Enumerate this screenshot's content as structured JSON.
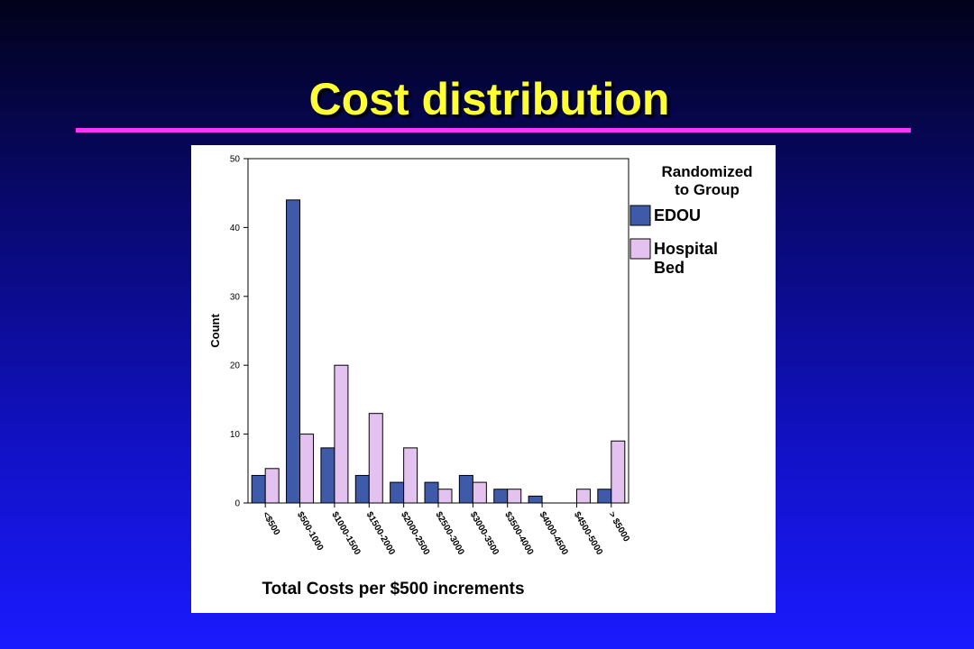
{
  "slide": {
    "title": "Cost distribution"
  },
  "colors": {
    "title": "#ffff33",
    "rule": "#ff33ff",
    "edou": "#3f5aa8",
    "hospital": "#e3c2ef"
  },
  "chart_data": {
    "type": "bar",
    "title": "",
    "xlabel": "Total Costs per $500 increments",
    "ylabel": "Count",
    "ylim": [
      0,
      50
    ],
    "yticks": [
      0,
      10,
      20,
      30,
      40,
      50
    ],
    "grid": false,
    "legend_position": "right",
    "legend_title": "Randomized to Group",
    "categories": [
      "<$500",
      "$500-1000",
      "$1000-1500",
      "$1500-2000",
      "$2000-2500",
      "$2500-3000",
      "$3000-3500",
      "$3500-4000",
      "$4000-4500",
      "$4500-5000",
      "> $5000"
    ],
    "series": [
      {
        "name": "EDOU",
        "values": [
          4,
          44,
          8,
          4,
          3,
          3,
          4,
          2,
          1,
          0,
          2
        ]
      },
      {
        "name": "Hospital Bed",
        "values": [
          5,
          10,
          20,
          13,
          8,
          2,
          3,
          2,
          0,
          2,
          9
        ]
      }
    ]
  }
}
